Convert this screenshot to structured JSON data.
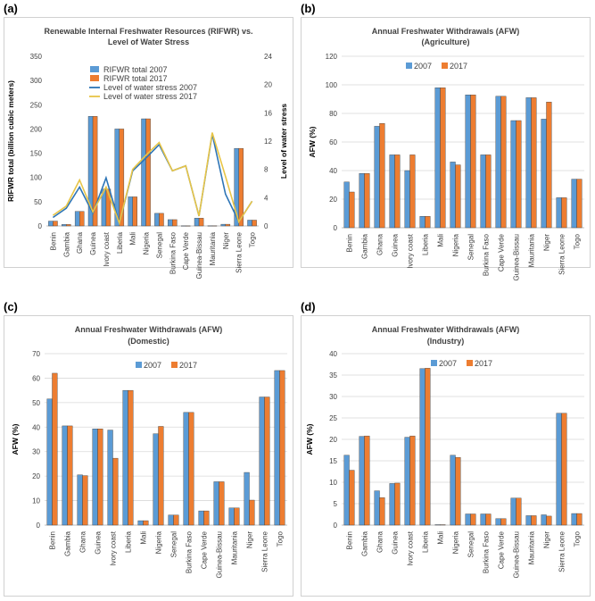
{
  "panel_labels": [
    "(a)",
    "(b)",
    "(c)",
    "(d)"
  ],
  "colors": {
    "c2007": "#5b9bd5",
    "c2017": "#ed7d31",
    "line2007": "#2e75b6",
    "line2017": "#e8c547",
    "grid": "#d9d9d9"
  },
  "chart_data": [
    {
      "type": "bar",
      "title": [
        "Renewable Internal Freshwater Resources (RIFWR) vs.",
        "Level of Water Stress"
      ],
      "ylabel": "RIFWR total (billion cubic meters)",
      "y2label": "Level of water stress",
      "ylim": [
        0,
        350
      ],
      "yticks": [
        0,
        50,
        100,
        150,
        200,
        250,
        300,
        350
      ],
      "y2lim": [
        0,
        24
      ],
      "y2ticks": [
        0,
        4,
        8,
        12,
        16,
        20,
        24
      ],
      "grid": false,
      "legend_position": "top-center",
      "categories": [
        "Benin",
        "Gambia",
        "Ghana",
        "Guinea",
        "Ivory coast",
        "Liberia",
        "Mali",
        "Nigeria",
        "Senegal",
        "Burkina Faso",
        "Cape Verde",
        "Guinea-Bissau",
        "Mauritania",
        "Niger",
        "Sierra Leone",
        "Togo"
      ],
      "series": [
        {
          "name": "RIFWR total 2007",
          "type": "bar",
          "values": [
            10,
            3,
            30,
            226,
            76,
            200,
            60,
            221,
            26,
            13,
            0.3,
            16,
            0.4,
            3.5,
            160,
            12
          ]
        },
        {
          "name": "RIFWR total 2017",
          "type": "bar",
          "values": [
            10,
            3,
            30,
            226,
            76,
            200,
            60,
            221,
            26,
            13,
            0.3,
            16,
            0.4,
            3.5,
            160,
            12
          ]
        },
        {
          "name": "Level of water stress 2007",
          "type": "line",
          "axis": "right",
          "values": [
            1.2,
            2.5,
            5.5,
            1.8,
            6.8,
            0.4,
            7.8,
            9.6,
            11.5,
            7.8,
            8.5,
            1.4,
            13.0,
            4.5,
            0.6,
            3.5
          ]
        },
        {
          "name": "Level of water stress 2017",
          "type": "line",
          "axis": "right",
          "values": [
            1.5,
            2.8,
            6.5,
            2.0,
            5.5,
            0.4,
            8.0,
            10.0,
            11.8,
            7.8,
            8.5,
            1.4,
            13.2,
            7.0,
            0.6,
            3.5
          ]
        }
      ]
    },
    {
      "type": "bar",
      "title": [
        "Annual Freshwater Withdrawals (AFW)",
        "(Agriculture)"
      ],
      "ylabel": "AFW (%)",
      "ylim": [
        0,
        120
      ],
      "yticks": [
        0,
        20,
        40,
        60,
        80,
        100,
        120
      ],
      "grid": true,
      "legend_position": "top-center",
      "categories": [
        "Benin",
        "Gambia",
        "Ghana",
        "Guinea",
        "Ivory coast",
        "Liberia",
        "Mali",
        "Nigeria",
        "Senegal",
        "Burkina Faso",
        "Cape Verde",
        "Guinea-Bissau",
        "Mauritania",
        "Niger",
        "Sierra Leone",
        "Togo"
      ],
      "series": [
        {
          "name": "2007",
          "values": [
            32,
            38,
            71,
            51,
            40,
            8,
            98,
            46,
            93,
            51,
            92,
            75,
            91,
            76,
            21,
            34
          ]
        },
        {
          "name": "2017",
          "values": [
            25,
            38,
            73,
            51,
            51,
            8,
            98,
            44,
            93,
            51,
            92,
            75,
            91,
            88,
            21,
            34
          ]
        }
      ]
    },
    {
      "type": "bar",
      "title": [
        "Annual Freshwater Withdrawals (AFW)",
        "(Domestic)"
      ],
      "ylabel": "AFW (%)",
      "ylim": [
        0,
        70
      ],
      "yticks": [
        0,
        10,
        20,
        30,
        40,
        50,
        60,
        70
      ],
      "grid": true,
      "legend_position": "top-center",
      "categories": [
        "Benin",
        "Gambia",
        "Ghana",
        "Guinea",
        "Ivory coast",
        "Liberia",
        "Mali",
        "Nigeria",
        "Senegal",
        "Burkina Faso",
        "Cape Verde",
        "Guinea-Bissau",
        "Mauritania",
        "Niger",
        "Sierra Leone",
        "Togo"
      ],
      "series": [
        {
          "name": "2007",
          "values": [
            51.5,
            40.5,
            20.5,
            39.3,
            38.8,
            55,
            1.8,
            37.3,
            4.1,
            46,
            5.8,
            17.7,
            7.0,
            21.5,
            52.3,
            63.1
          ]
        },
        {
          "name": "2017",
          "values": [
            62,
            40.5,
            20.2,
            39.3,
            27.3,
            55,
            1.8,
            40.3,
            4.1,
            46,
            5.8,
            17.7,
            7.0,
            10.2,
            52.3,
            63.1
          ]
        }
      ]
    },
    {
      "type": "bar",
      "title": [
        "Annual Freshwater Withdrawals (AFW)",
        "(Industry)"
      ],
      "ylabel": "AFW (%)",
      "ylim": [
        0,
        40
      ],
      "yticks": [
        0,
        5,
        10,
        15,
        20,
        25,
        30,
        35,
        40
      ],
      "grid": true,
      "legend_position": "top-center",
      "categories": [
        "Benin",
        "Gambia",
        "Ghana",
        "Guinea",
        "Ivory coast",
        "Liberia",
        "Mali",
        "Nigeria",
        "Senegal",
        "Burkina Faso",
        "Cape Verde",
        "Guinea-Bissau",
        "Mauritania",
        "Niger",
        "Sierra Leone",
        "Togo"
      ],
      "series": [
        {
          "name": "2007",
          "values": [
            16.3,
            20.7,
            8.0,
            9.7,
            20.5,
            36.5,
            0.1,
            16.3,
            2.6,
            2.6,
            1.5,
            6.3,
            2.2,
            2.4,
            26.1,
            2.7
          ]
        },
        {
          "name": "2017",
          "values": [
            12.8,
            20.8,
            6.4,
            9.8,
            20.8,
            36.6,
            0.1,
            15.8,
            2.6,
            2.6,
            1.5,
            6.3,
            2.2,
            2.1,
            26.1,
            2.7
          ]
        }
      ]
    }
  ]
}
